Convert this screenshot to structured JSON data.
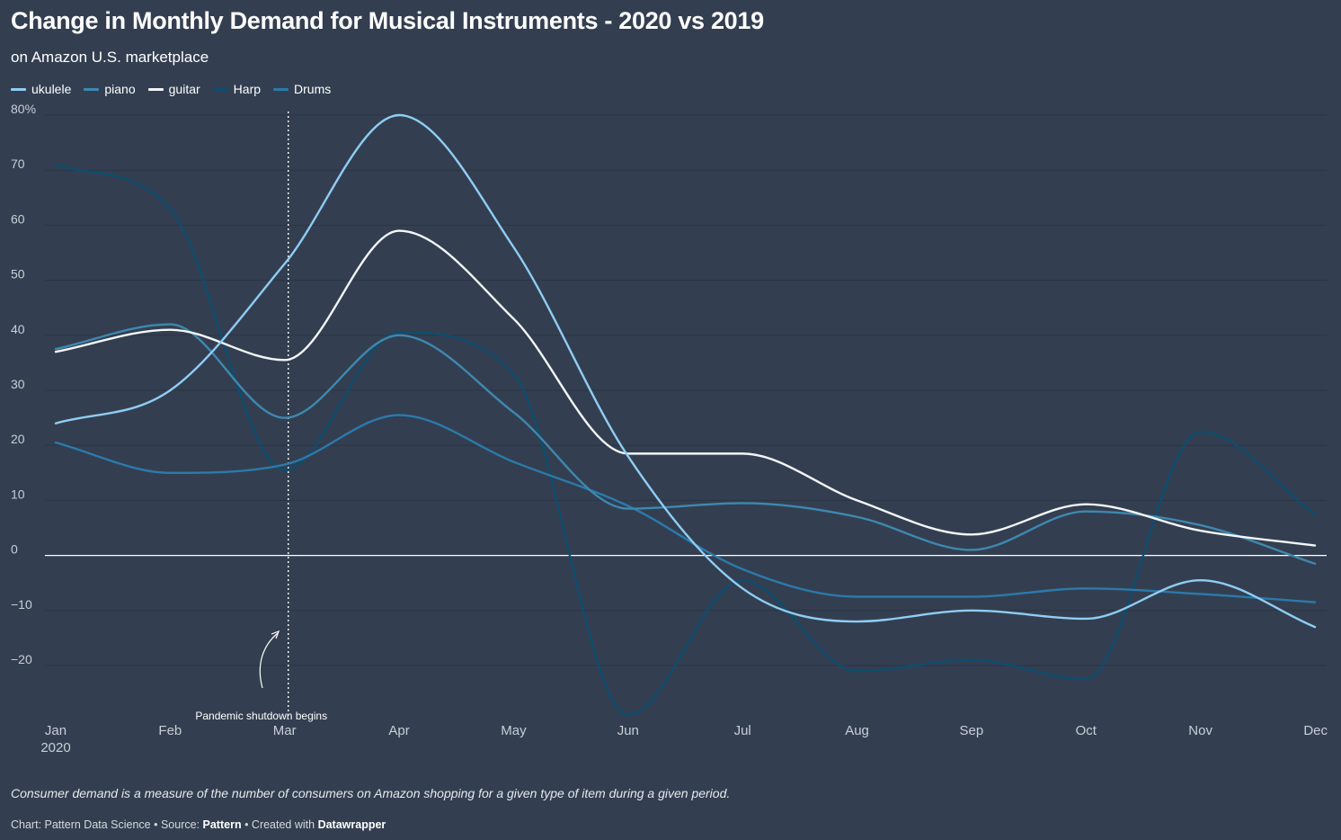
{
  "header": {
    "title": "Change in Monthly Demand for Musical Instruments - 2020 vs 2019",
    "subtitle": "on Amazon U.S. marketplace"
  },
  "footer": {
    "notes": "Consumer demand is a measure of the number of consumers on Amazon shopping for a given type of item during a given period.",
    "byline_prefix": "Chart: Pattern Data Science • Source: ",
    "source": "Pattern",
    "created_prefix": " • Created with ",
    "tool": "Datawrapper"
  },
  "chart_data": {
    "type": "line",
    "title": "Change in Monthly Demand for Musical Instruments - 2020 vs 2019",
    "subtitle": "on Amazon U.S. marketplace",
    "xlabel": "",
    "ylabel": "",
    "categories": [
      "Jan",
      "Feb",
      "Mar",
      "Apr",
      "May",
      "Jun",
      "Jul",
      "Aug",
      "Sep",
      "Oct",
      "Nov",
      "Dec"
    ],
    "x_tick_labels": [
      "Jan\n2020",
      "Feb",
      "Mar",
      "Apr",
      "May",
      "Jun",
      "Jul",
      "Aug",
      "Sep",
      "Oct",
      "Nov",
      "Dec"
    ],
    "y_ticks": [
      80,
      70,
      60,
      50,
      40,
      30,
      20,
      10,
      0,
      -10,
      -20
    ],
    "y_tick_labels": [
      "80%",
      "70",
      "60",
      "50",
      "40",
      "30",
      "20",
      "10",
      "0",
      "−10",
      "−20"
    ],
    "ylim": [
      -29,
      80
    ],
    "grid": true,
    "legend_position": "top-left",
    "series": [
      {
        "name": "ukulele",
        "color": "#8fcdf5",
        "values": [
          24,
          30,
          53,
          80,
          56,
          18,
          -6,
          -12,
          -10,
          -11.5,
          -4.5,
          -13
        ]
      },
      {
        "name": "piano",
        "color": "#3e88b0",
        "values": [
          37.5,
          42,
          25,
          40,
          26,
          8.5,
          9.5,
          7,
          1,
          8,
          5.5,
          -1.5
        ]
      },
      {
        "name": "guitar",
        "color": "#f3f6f9",
        "values": [
          37,
          41,
          35.5,
          59,
          43,
          18.5,
          18.5,
          10,
          3.8,
          9.3,
          4.5,
          1.8
        ]
      },
      {
        "name": "Harp",
        "color": "#0e4d70",
        "values": [
          71,
          63,
          15.5,
          40.5,
          33,
          -29,
          -4.5,
          -21,
          -19,
          -22.5,
          22.5,
          7.5
        ]
      },
      {
        "name": "Drums",
        "color": "#2b7aab",
        "values": [
          20.5,
          15,
          16.5,
          25.5,
          17,
          9,
          -2.5,
          -7.5,
          -7.5,
          -6,
          -7,
          -8.5
        ]
      }
    ],
    "annotations": [
      {
        "text": "Pandemic shutdown begins",
        "x": "Mar"
      }
    ]
  }
}
